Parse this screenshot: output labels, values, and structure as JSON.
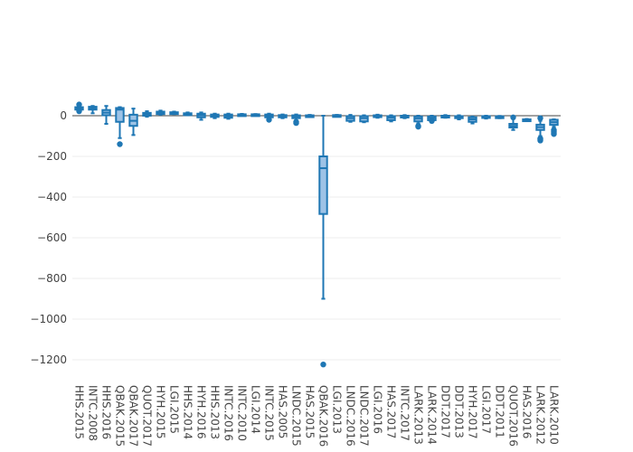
{
  "chart_data": {
    "type": "box",
    "title": "",
    "xlabel": "",
    "ylabel": "",
    "ylim": [
      -1300,
      90
    ],
    "yticks": [
      0,
      -200,
      -400,
      -600,
      -800,
      -1000,
      -1200
    ],
    "ytick_labels": [
      "0",
      "−200",
      "−400",
      "−600",
      "−800",
      "−1000",
      "−1200"
    ],
    "grid": true,
    "legend": "none",
    "colors": {
      "box_fill": "#9ec3e6",
      "box_line": "#1f77b4",
      "zero_line": "#444444",
      "grid": "#eeeeee"
    },
    "categories": [
      "HHS.2015",
      "INTC.2008",
      "HHS.2016",
      "QBAK.2015",
      "QBAK.2017",
      "QUOT.2017",
      "HYH.2015",
      "LGI.2015",
      "HHS.2014",
      "HYH.2016",
      "HHS.2013",
      "INTC.2016",
      "INTC.2010",
      "LGI.2014",
      "INTC.2015",
      "HAS.2005",
      "LNDC.2015",
      "HAS.2015",
      "QBAK.2016",
      "LGI.2013",
      "LNDC.2016",
      "LNDC.2017",
      "LGI.2016",
      "HAS.2017",
      "INTC.2017",
      "LARK.2013",
      "LARK.2014",
      "DDT.2017",
      "DDT.2013",
      "HYH.2017",
      "LGI.2017",
      "DDT.2011",
      "QUOT.2016",
      "HAS.2016",
      "LARK.2012",
      "LARK.2010"
    ],
    "boxes": [
      {
        "min": 26,
        "q1": 30,
        "median": 36,
        "q3": 42,
        "max": 50,
        "outliers": [
          55,
          22
        ]
      },
      {
        "min": 12,
        "q1": 30,
        "median": 38,
        "q3": 44,
        "max": 48,
        "outliers": []
      },
      {
        "min": -40,
        "q1": 2,
        "median": 15,
        "q3": 28,
        "max": 48,
        "outliers": []
      },
      {
        "min": -110,
        "q1": -30,
        "median": 30,
        "q3": 38,
        "max": 42,
        "outliers": [
          -140
        ]
      },
      {
        "min": -95,
        "q1": -50,
        "median": -25,
        "q3": 5,
        "max": 35,
        "outliers": []
      },
      {
        "min": -5,
        "q1": 0,
        "median": 8,
        "q3": 14,
        "max": 22,
        "outliers": []
      },
      {
        "min": 5,
        "q1": 8,
        "median": 15,
        "q3": 20,
        "max": 25,
        "outliers": []
      },
      {
        "min": 8,
        "q1": 10,
        "median": 14,
        "q3": 17,
        "max": 20,
        "outliers": []
      },
      {
        "min": 2,
        "q1": 4,
        "median": 8,
        "q3": 12,
        "max": 16,
        "outliers": []
      },
      {
        "min": -20,
        "q1": -8,
        "median": 2,
        "q3": 10,
        "max": 16,
        "outliers": []
      },
      {
        "min": -12,
        "q1": -6,
        "median": 0,
        "q3": 6,
        "max": 10,
        "outliers": []
      },
      {
        "min": -15,
        "q1": -10,
        "median": -2,
        "q3": 6,
        "max": 10,
        "outliers": []
      },
      {
        "min": 0,
        "q1": 2,
        "median": 4,
        "q3": 7,
        "max": 9,
        "outliers": []
      },
      {
        "min": 2,
        "q1": 3,
        "median": 5,
        "q3": 7,
        "max": 8,
        "outliers": []
      },
      {
        "min": -18,
        "q1": -8,
        "median": 0,
        "q3": 6,
        "max": 10,
        "outliers": [
          -20
        ]
      },
      {
        "min": -12,
        "q1": -8,
        "median": -2,
        "q3": 3,
        "max": 6,
        "outliers": []
      },
      {
        "min": -22,
        "q1": -12,
        "median": -4,
        "q3": 2,
        "max": 6,
        "outliers": [
          -30,
          -36
        ]
      },
      {
        "min": -6,
        "q1": -4,
        "median": -1,
        "q3": 2,
        "max": 4,
        "outliers": []
      },
      {
        "min": -900,
        "q1": -483,
        "median": -258,
        "q3": -200,
        "max": 0,
        "outliers": [
          -1223
        ]
      },
      {
        "min": -2,
        "q1": 0,
        "median": 2,
        "q3": 3,
        "max": 4,
        "outliers": []
      },
      {
        "min": -30,
        "q1": -25,
        "median": -12,
        "q3": -2,
        "max": 4,
        "outliers": []
      },
      {
        "min": -32,
        "q1": -28,
        "median": -12,
        "q3": -2,
        "max": 2,
        "outliers": []
      },
      {
        "min": -10,
        "q1": -6,
        "median": -2,
        "q3": 2,
        "max": 5,
        "outliers": []
      },
      {
        "min": -28,
        "q1": -22,
        "median": -10,
        "q3": -2,
        "max": 2,
        "outliers": []
      },
      {
        "min": -12,
        "q1": -8,
        "median": -4,
        "q3": 0,
        "max": 3,
        "outliers": []
      },
      {
        "min": -38,
        "q1": -28,
        "median": -14,
        "q3": -4,
        "max": 0,
        "outliers": [
          -50,
          -54
        ]
      },
      {
        "min": -30,
        "q1": -22,
        "median": -12,
        "q3": -4,
        "max": 0,
        "outliers": [
          -26
        ]
      },
      {
        "min": -10,
        "q1": -6,
        "median": -3,
        "q3": 0,
        "max": 3,
        "outliers": []
      },
      {
        "min": -18,
        "q1": -12,
        "median": -6,
        "q3": -2,
        "max": 2,
        "outliers": []
      },
      {
        "min": -38,
        "q1": -30,
        "median": -18,
        "q3": -8,
        "max": -4,
        "outliers": []
      },
      {
        "min": -14,
        "q1": -10,
        "median": -6,
        "q3": -2,
        "max": 0,
        "outliers": []
      },
      {
        "min": -12,
        "q1": -9,
        "median": -6,
        "q3": -3,
        "max": -1,
        "outliers": []
      },
      {
        "min": -70,
        "q1": -58,
        "median": -50,
        "q3": -40,
        "max": -10,
        "outliers": [
          -8
        ]
      },
      {
        "min": -24,
        "q1": -22,
        "median": -20,
        "q3": -18,
        "max": -16,
        "outliers": []
      },
      {
        "min": -100,
        "q1": -70,
        "median": -56,
        "q3": -44,
        "max": -25,
        "outliers": [
          -12,
          -112,
          -118,
          -122
        ]
      },
      {
        "min": -55,
        "q1": -45,
        "median": -32,
        "q3": -20,
        "max": -18,
        "outliers": [
          -70,
          -78,
          -84,
          -90
        ]
      }
    ]
  }
}
